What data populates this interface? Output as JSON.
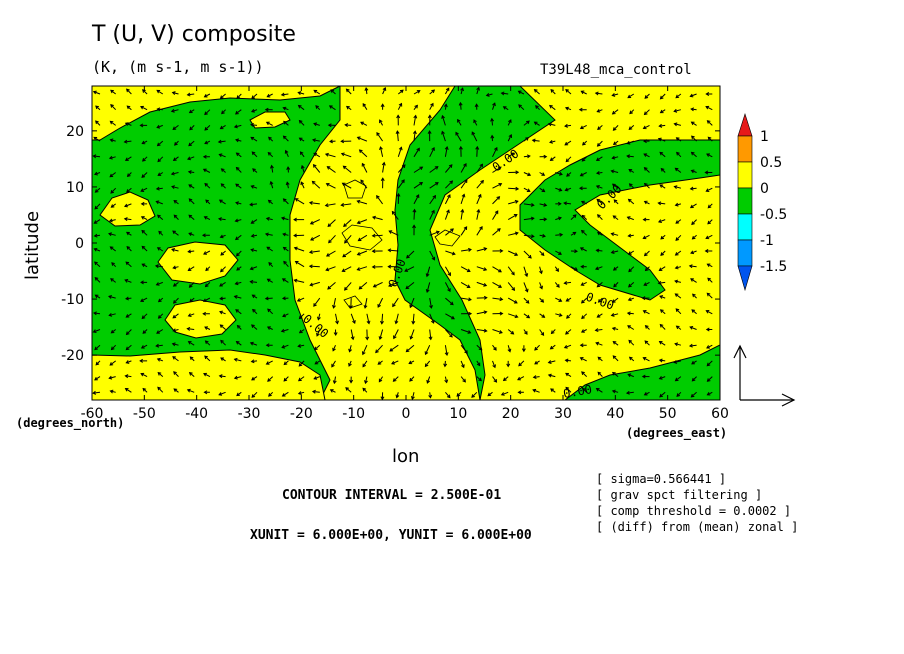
{
  "chart_data": {
    "type": "heatmap",
    "title": "T (U, V) composite",
    "subtitle": "(K, (m s-1, m s-1))",
    "run_name": "T39L48_mca_control",
    "xlabel": "lon",
    "ylabel": "latitude",
    "x_unit_label": "(degrees_east)",
    "y_unit_label": "(degrees_north)",
    "xlim": [
      -60,
      60
    ],
    "ylim": [
      -28,
      28
    ],
    "x_ticks": [
      "-60",
      "-50",
      "-40",
      "-30",
      "-20",
      "-10",
      "0",
      "10",
      "20",
      "30",
      "40",
      "50",
      "60"
    ],
    "y_ticks": [
      "20",
      "10",
      "0",
      "-10",
      "-20"
    ],
    "colorbar": {
      "labels": [
        "1",
        "0.5",
        "0",
        "-0.5",
        "-1",
        "-1.5"
      ],
      "colors": [
        "#e61a1a",
        "#ff9900",
        "#ffff00",
        "#00cc00",
        "#00ffff",
        "#0099ff",
        "#0055ee"
      ]
    },
    "contour_labels": [
      "0.00",
      "0.00",
      "0.00",
      "0.00",
      "0.00",
      "0.00"
    ],
    "contour_interval": "CONTOUR INTERVAL = 2.500E-01",
    "vector_units": "XUNIT = 6.000E+00, YUNIT = 6.000E+00"
  },
  "meta": [
    "[ sigma=0.566441 ]",
    "[ grav spct filtering ]",
    "[ comp threshold = 0.0002 ]",
    "[ (diff) from (mean) zonal ]"
  ],
  "colors": {
    "yellow": "#ffff00",
    "green": "#00cc00",
    "arrow": "#000000"
  }
}
